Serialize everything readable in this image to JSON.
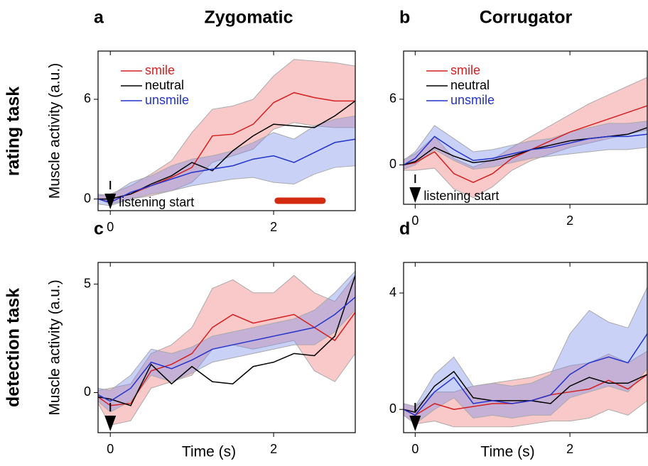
{
  "figure": {
    "column_titles": [
      "Zygomatic",
      "Corrugator"
    ],
    "row_labels": [
      "rating task",
      "detection task"
    ]
  },
  "chart_data": [
    {
      "type": "line",
      "panel": "a",
      "ylabel": "Muscle activity (a.u.)",
      "legend": true,
      "x": [
        -0.15,
        0,
        0.25,
        0.5,
        0.75,
        1,
        1.25,
        1.5,
        1.75,
        2,
        2.25,
        2.5,
        2.75,
        3.0
      ],
      "xlim": [
        -0.15,
        3.0
      ],
      "xticks": [
        0,
        2
      ],
      "ylim": [
        -0.7,
        8.9
      ],
      "yticks": [
        0,
        6
      ],
      "annotation": {
        "text": "listening start",
        "x": 0
      },
      "highlight": {
        "x": [
          2.05,
          2.6
        ],
        "y": -0.1,
        "color": "#d42a10"
      },
      "series": [
        {
          "name": "smile",
          "color": "#d42020",
          "values": [
            0,
            0,
            0.3,
            0.8,
            1.3,
            1.9,
            3.8,
            3.9,
            4.5,
            5.8,
            6.4,
            6.1,
            5.9,
            5.9
          ],
          "lower": [
            0,
            -0.3,
            0,
            0.2,
            0.5,
            1.0,
            2.2,
            2.6,
            3.0,
            4.2,
            4.6,
            4.4,
            4.3,
            4.3
          ],
          "upper": [
            0.2,
            0.3,
            0.8,
            1.5,
            2.3,
            4.0,
            5.4,
            5.6,
            6.0,
            7.4,
            8.4,
            8.3,
            8.2,
            8.0
          ]
        },
        {
          "name": "neutral",
          "color": "#000000",
          "values": [
            0,
            0,
            0.3,
            0.9,
            1.4,
            2.2,
            1.7,
            2.9,
            3.8,
            4.5,
            4.4,
            4.3,
            5.0,
            5.9
          ]
        },
        {
          "name": "unsmile",
          "color": "#2233cc",
          "values": [
            0,
            -0.2,
            0.4,
            0.8,
            1.2,
            1.6,
            1.8,
            2.0,
            2.4,
            2.6,
            2.2,
            2.8,
            3.4,
            3.6
          ],
          "lower": [
            -0.3,
            -0.4,
            0,
            0.3,
            0.5,
            0.8,
            1.0,
            1.2,
            1.3,
            1.0,
            0.9,
            1.5,
            1.9,
            2.0
          ],
          "upper": [
            0.3,
            0.2,
            1.0,
            1.4,
            2.0,
            2.4,
            2.6,
            2.9,
            3.4,
            4.0,
            3.6,
            4.4,
            4.8,
            5.0
          ]
        }
      ]
    },
    {
      "type": "line",
      "panel": "b",
      "legend": true,
      "x": [
        -0.15,
        0,
        0.25,
        0.5,
        0.75,
        1,
        1.25,
        1.5,
        1.75,
        2,
        2.25,
        2.5,
        2.75,
        3.0
      ],
      "xlim": [
        -0.15,
        3.0
      ],
      "xticks": [
        0,
        2
      ],
      "ylim": [
        -3.6,
        10.4
      ],
      "yticks": [
        0,
        6
      ],
      "annotation": {
        "text": "listening start",
        "x": 0
      },
      "series": [
        {
          "name": "smile",
          "color": "#d42020",
          "values": [
            0,
            0.2,
            1.2,
            -0.8,
            -1.6,
            -0.8,
            0.6,
            1.4,
            2.2,
            3.0,
            3.6,
            4.2,
            4.8,
            5.4
          ],
          "lower": [
            -0.5,
            -0.5,
            -0.3,
            -2.2,
            -3.0,
            -2.0,
            -0.5,
            0.4,
            1.0,
            1.6,
            2.0,
            2.4,
            2.8,
            3.2
          ],
          "upper": [
            0.5,
            1.0,
            2.6,
            0.6,
            -0.2,
            0.5,
            1.6,
            2.6,
            3.6,
            4.6,
            5.6,
            6.4,
            7.2,
            8.0
          ]
        },
        {
          "name": "neutral",
          "color": "#000000",
          "values": [
            0,
            0.3,
            1.6,
            0.8,
            0.2,
            0.4,
            0.8,
            1.4,
            1.8,
            2.2,
            2.4,
            2.6,
            2.8,
            3.4
          ]
        },
        {
          "name": "unsmile",
          "color": "#2233cc",
          "values": [
            0,
            0.6,
            2.6,
            1.4,
            0.4,
            0.6,
            1.0,
            1.4,
            1.6,
            2.0,
            2.4,
            2.6,
            2.6,
            2.8
          ],
          "lower": [
            -0.4,
            0,
            1.4,
            0.4,
            -0.4,
            -0.2,
            0.2,
            0.6,
            0.8,
            1.0,
            1.2,
            1.4,
            1.4,
            1.6
          ],
          "upper": [
            0.4,
            1.2,
            3.6,
            2.4,
            1.2,
            1.4,
            1.8,
            2.2,
            2.4,
            3.0,
            3.4,
            3.8,
            3.8,
            4.0
          ]
        }
      ]
    },
    {
      "type": "line",
      "panel": "c",
      "ylabel": "Muscle activity (a.u.)",
      "xlabel": "Time (s)",
      "legend": false,
      "x": [
        -0.15,
        0,
        0.25,
        0.5,
        0.75,
        1,
        1.25,
        1.5,
        1.75,
        2,
        2.25,
        2.5,
        2.75,
        3.0
      ],
      "xlim": [
        -0.15,
        3.0
      ],
      "xticks": [
        0,
        2
      ],
      "ylim": [
        -1.85,
        6.0
      ],
      "yticks": [
        0,
        5
      ],
      "annotation": {
        "x": 0
      },
      "series": [
        {
          "name": "smile",
          "color": "#d42020",
          "values": [
            -0.2,
            -0.6,
            -0.5,
            1.0,
            1.3,
            1.8,
            3.0,
            3.6,
            3.2,
            3.4,
            3.6,
            3.0,
            2.4,
            3.7
          ],
          "lower": [
            -0.5,
            -1.5,
            -1.3,
            0.2,
            0.5,
            0.8,
            2.0,
            2.2,
            2.0,
            2.2,
            2.4,
            1.0,
            0.5,
            1.8
          ],
          "upper": [
            0.1,
            0.2,
            0.4,
            1.8,
            2.2,
            3.0,
            4.8,
            5.2,
            4.6,
            4.6,
            5.4,
            4.6,
            4.2,
            5.4
          ]
        },
        {
          "name": "neutral",
          "color": "#000000",
          "values": [
            -0.2,
            -0.3,
            -0.6,
            1.3,
            0.4,
            1.2,
            0.5,
            0.4,
            1.2,
            1.4,
            1.8,
            1.7,
            2.6,
            5.4
          ]
        },
        {
          "name": "unsmile",
          "color": "#2233cc",
          "values": [
            -0.1,
            -0.4,
            0.2,
            1.4,
            1.1,
            1.5,
            2.0,
            2.2,
            2.4,
            2.6,
            2.8,
            3.0,
            3.6,
            4.4
          ],
          "lower": [
            -0.4,
            -0.9,
            -0.4,
            0.8,
            0.5,
            0.9,
            1.4,
            1.6,
            1.8,
            2.0,
            2.2,
            2.2,
            2.8,
            3.8
          ],
          "upper": [
            0.2,
            0.1,
            0.8,
            2.0,
            1.8,
            2.1,
            2.6,
            2.8,
            3.0,
            3.2,
            3.4,
            3.8,
            4.6,
            5.6
          ]
        }
      ]
    },
    {
      "type": "line",
      "panel": "d",
      "xlabel": "Time (s)",
      "legend": false,
      "x": [
        -0.15,
        0,
        0.25,
        0.5,
        0.75,
        1,
        1.25,
        1.5,
        1.75,
        2,
        2.25,
        2.5,
        2.75,
        3.0
      ],
      "xlim": [
        -0.15,
        3.0
      ],
      "xticks": [
        0,
        2
      ],
      "ylim": [
        -0.8,
        5.05
      ],
      "yticks": [
        0,
        4
      ],
      "annotation": {
        "x": 0
      },
      "series": [
        {
          "name": "smile",
          "color": "#d42020",
          "values": [
            0,
            -0.2,
            0.2,
            0.0,
            0.1,
            0.2,
            0.2,
            0.3,
            0.5,
            0.6,
            0.7,
            1.0,
            0.7,
            1.2
          ],
          "lower": [
            -0.2,
            -0.5,
            -0.4,
            -0.6,
            -0.6,
            -0.6,
            -0.6,
            -0.5,
            -0.4,
            -0.4,
            -0.3,
            0.0,
            -0.2,
            0.3
          ],
          "upper": [
            0.2,
            0.1,
            0.6,
            0.6,
            0.8,
            0.9,
            1.0,
            1.1,
            1.3,
            1.5,
            1.6,
            1.9,
            1.6,
            2.0
          ]
        },
        {
          "name": "neutral",
          "color": "#000000",
          "values": [
            0,
            -0.1,
            0.8,
            1.3,
            0.4,
            0.3,
            0.3,
            0.3,
            0.2,
            0.8,
            1.1,
            0.9,
            0.9,
            1.2
          ]
        },
        {
          "name": "unsmile",
          "color": "#2233cc",
          "values": [
            0,
            -0.2,
            0.6,
            1.1,
            0.2,
            0.3,
            0.2,
            0.3,
            0.5,
            1.2,
            1.6,
            1.8,
            1.6,
            2.6
          ],
          "lower": [
            -0.2,
            -0.5,
            0.0,
            0.4,
            -0.3,
            -0.2,
            -0.3,
            -0.2,
            -0.2,
            0.4,
            0.6,
            0.8,
            0.6,
            1.4
          ],
          "upper": [
            0.2,
            0.1,
            1.2,
            1.8,
            0.8,
            0.9,
            0.8,
            0.9,
            1.2,
            2.6,
            3.4,
            3.0,
            2.8,
            4.2
          ]
        }
      ]
    }
  ]
}
